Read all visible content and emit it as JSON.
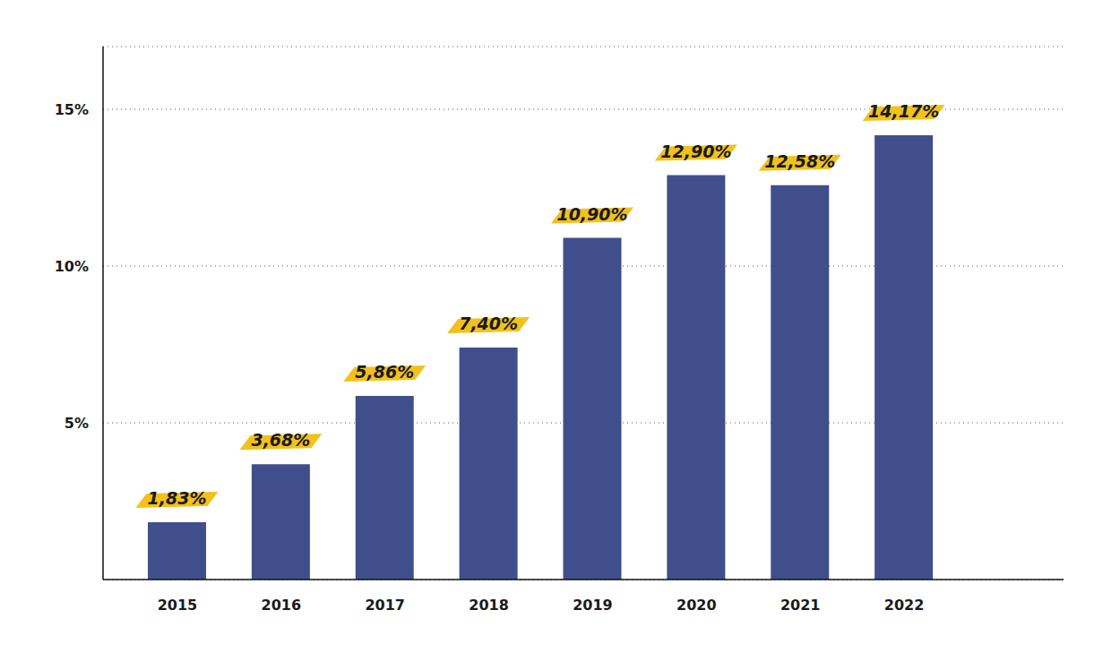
{
  "chart_data": {
    "type": "bar",
    "categories": [
      "2015",
      "2016",
      "2017",
      "2018",
      "2019",
      "2020",
      "2021",
      "2022"
    ],
    "values": [
      1.83,
      3.68,
      5.86,
      7.4,
      10.9,
      12.9,
      12.58,
      14.17
    ],
    "value_labels": [
      "1,83%",
      "3,68%",
      "5,86%",
      "7,40%",
      "10,90%",
      "12,90%",
      "12,58%",
      "14,17%"
    ],
    "color": "#404f8b",
    "ylim": [
      0,
      17
    ],
    "yticks": [
      {
        "value": 5,
        "label": "5%"
      },
      {
        "value": 10,
        "label": "10%"
      },
      {
        "value": 15,
        "label": "15%"
      }
    ],
    "grid": true,
    "data_labels": true
  }
}
